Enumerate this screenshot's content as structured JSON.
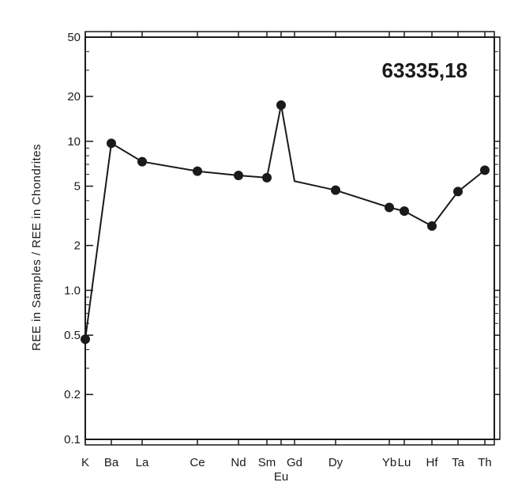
{
  "chart_data": {
    "type": "line",
    "title": "63335,18",
    "xlabel": "",
    "ylabel": "REE in Samples / REE in Chondrites",
    "yscale": "log",
    "ylim": [
      0.1,
      50
    ],
    "y_ticks": [
      "0.1",
      "0.2",
      "0.5",
      "1.0",
      "2",
      "5",
      "10",
      "20",
      "50"
    ],
    "categories": [
      "K",
      "Ba",
      "La",
      "Ce",
      "Nd",
      "Sm",
      "Eu",
      "Gd",
      "Dy",
      "Yb",
      "Lu",
      "Hf",
      "Ta",
      "Th"
    ],
    "series": [
      {
        "points": [
          {
            "x": "K",
            "y": 0.47,
            "marker": true
          },
          {
            "x": "Ba",
            "y": 9.7,
            "marker": true
          },
          {
            "x": "La",
            "y": 7.3,
            "marker": true
          },
          {
            "x": "Ce",
            "y": 6.3,
            "marker": true
          },
          {
            "x": "Nd",
            "y": 5.9,
            "marker": true
          },
          {
            "x": "Sm",
            "y": 5.7,
            "marker": true
          },
          {
            "x": "Eu",
            "y": 17.5,
            "marker": true
          },
          {
            "x": "Gd",
            "y": 5.4,
            "marker": false
          },
          {
            "x": "Dy",
            "y": 4.7,
            "marker": true
          },
          {
            "x": "Yb",
            "y": 3.6,
            "marker": true
          },
          {
            "x": "Lu",
            "y": 3.4,
            "marker": true
          },
          {
            "x": "Hf",
            "y": 2.7,
            "marker": true
          },
          {
            "x": "Ta",
            "y": 4.6,
            "marker": true
          },
          {
            "x": "Th",
            "y": 6.4,
            "marker": true
          }
        ]
      }
    ],
    "grid": false,
    "legend": "none",
    "colors": {
      "line": "#1a1a1a",
      "marker": "#1a1a1a",
      "frame": "#1a1a1a"
    }
  }
}
